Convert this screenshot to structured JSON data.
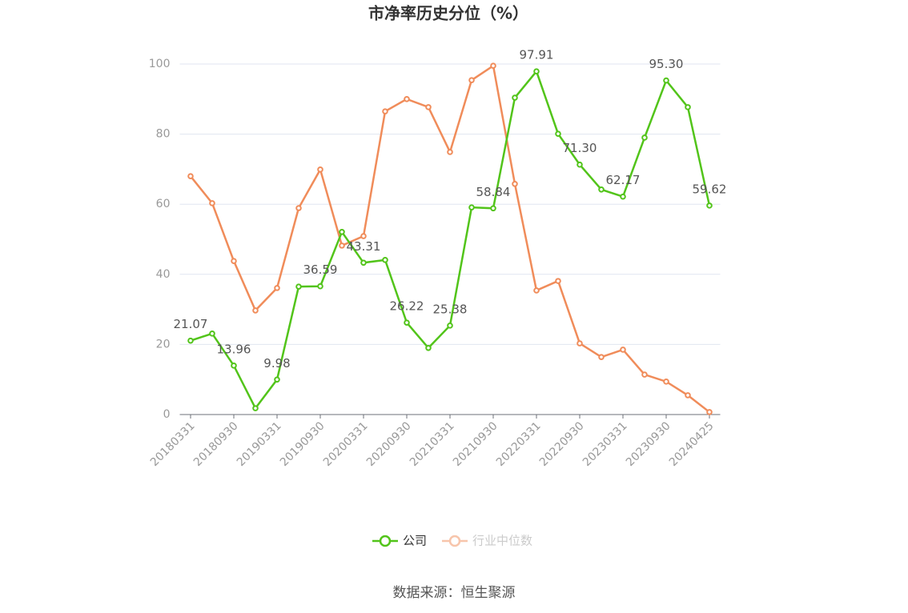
{
  "chart_data": {
    "type": "line",
    "title": "市净率历史分位（%）",
    "categories": [
      "20180331",
      null,
      "20180930",
      null,
      "20190331",
      null,
      "20190930",
      null,
      "20200331",
      null,
      "20200930",
      null,
      "20210331",
      null,
      "20210930",
      null,
      "20220331",
      null,
      "20220930",
      null,
      "20230331",
      null,
      "20230930",
      null,
      "20240425"
    ],
    "series": [
      {
        "name": "公司",
        "color": "#52c41a",
        "values": [
          21.07,
          23.1,
          13.96,
          1.8,
          9.98,
          36.5,
          36.59,
          52.1,
          43.31,
          44.1,
          26.22,
          19.0,
          25.38,
          59.1,
          58.84,
          90.4,
          97.91,
          80.1,
          71.3,
          64.2,
          62.17,
          79.0,
          95.3,
          87.7,
          59.62
        ],
        "value_labels": [
          "21.07",
          null,
          "13.96",
          null,
          "9.98",
          null,
          "36.59",
          null,
          "43.31",
          null,
          "26.22",
          null,
          "25.38",
          null,
          "58.84",
          null,
          "97.91",
          null,
          "71.30",
          null,
          "62.17",
          null,
          "95.30",
          null,
          "59.62"
        ]
      },
      {
        "name": "行业中位数",
        "color": "#f08c5a",
        "values": [
          68.0,
          60.3,
          43.8,
          29.7,
          36.1,
          58.9,
          69.9,
          48.2,
          50.9,
          86.5,
          90.0,
          87.7,
          74.9,
          95.4,
          99.5,
          65.8,
          35.4,
          38.1,
          20.3,
          16.4,
          18.5,
          11.4,
          9.4,
          5.5,
          0.7
        ]
      }
    ],
    "ylim": [
      0,
      100
    ],
    "yticks": [
      0,
      20,
      40,
      60,
      80,
      100
    ],
    "grid": true,
    "legend": "bottom",
    "source": "数据来源：恒生聚源"
  }
}
